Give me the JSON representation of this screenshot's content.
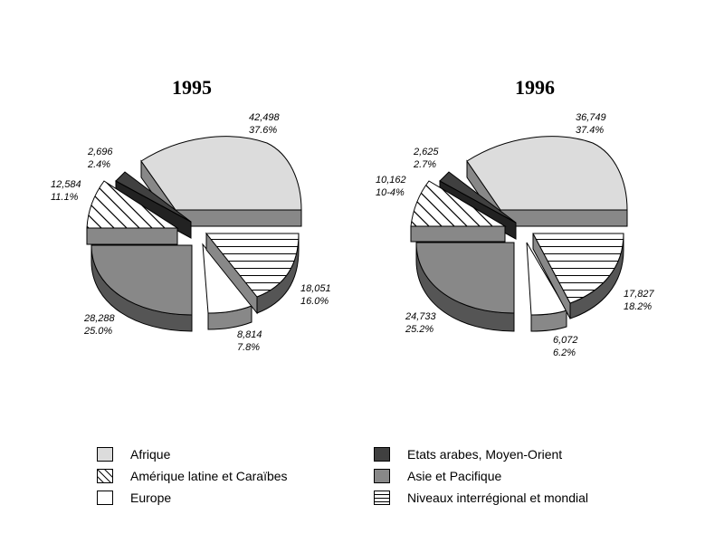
{
  "chart_data": [
    {
      "type": "pie",
      "title": "1995",
      "slices": [
        {
          "category": "Afrique",
          "value": "42,498",
          "percent": "37.6%"
        },
        {
          "category": "Niveaux interrégional et mondial",
          "value": "18,051",
          "percent": "16.0%"
        },
        {
          "category": "Europe",
          "value": "8,814",
          "percent": "7.8%"
        },
        {
          "category": "Asie et Pacifique",
          "value": "28,288",
          "percent": "25.0%"
        },
        {
          "category": "Amérique latine et Caraïbes",
          "value": "12,584",
          "percent": "11.1%"
        },
        {
          "category": "Etats arabes, Moyen-Orient",
          "value": "2,696",
          "percent": "2.4%"
        }
      ]
    },
    {
      "type": "pie",
      "title": "1996",
      "slices": [
        {
          "category": "Afrique",
          "value": "36,749",
          "percent": "37.4%"
        },
        {
          "category": "Niveaux interrégional et mondial",
          "value": "17,827",
          "percent": "18.2%"
        },
        {
          "category": "Europe",
          "value": "6,072",
          "percent": "6.2%"
        },
        {
          "category": "Asie et Pacifique",
          "value": "24,733",
          "percent": "25.2%"
        },
        {
          "category": "Amérique latine et Caraïbes",
          "value": "10,162",
          "percent": "10-4%"
        },
        {
          "category": "Etats arabes, Moyen-Orient",
          "value": "2,625",
          "percent": "2.7%"
        }
      ]
    }
  ],
  "legend": [
    {
      "label": "Afrique",
      "fill": "#dcdcdc",
      "pattern": "none"
    },
    {
      "label": "Amérique latine et Caraïbes",
      "fill": "#ffffff",
      "pattern": "diagonal"
    },
    {
      "label": "Europe",
      "fill": "#ffffff",
      "pattern": "none"
    },
    {
      "label": "Etats arabes, Moyen-Orient",
      "fill": "#404040",
      "pattern": "none"
    },
    {
      "label": "Asie et Pacifique",
      "fill": "#888888",
      "pattern": "none"
    },
    {
      "label": "Niveaux interrégional et mondial",
      "fill": "#ffffff",
      "pattern": "horizontal"
    }
  ]
}
